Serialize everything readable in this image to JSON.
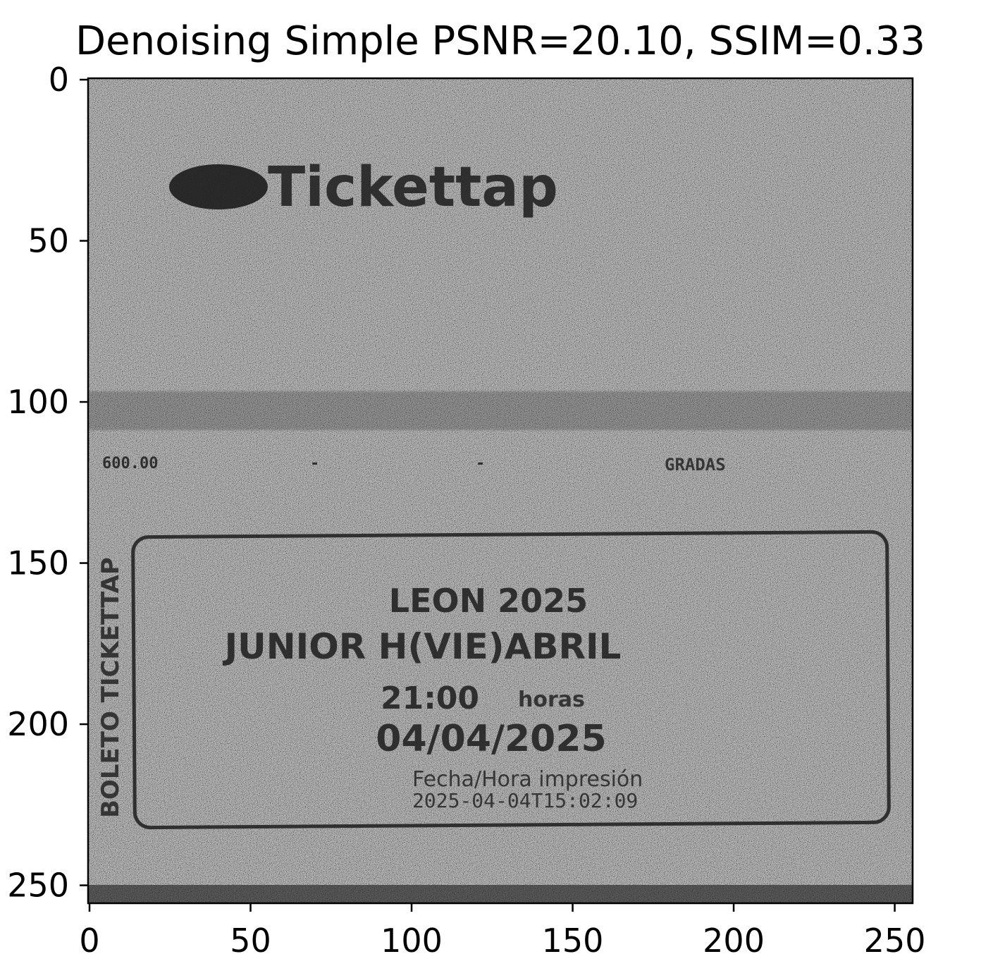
{
  "title": "Denoising Simple PSNR=20.10, SSIM=0.33",
  "axes": {
    "x_ticks": [
      "0",
      "50",
      "100",
      "150",
      "200",
      "250"
    ],
    "y_ticks": [
      "0",
      "50",
      "100",
      "150",
      "200",
      "250"
    ],
    "x_range": [
      0,
      256
    ],
    "y_range": [
      0,
      256
    ]
  },
  "image_content": {
    "logo_text": "Tickettap",
    "price_text": "600.00",
    "dash_1": "-",
    "dash_2": "-",
    "section_text": "GRADAS",
    "side_text": "BOLETO TICKETTAP",
    "event_name": "LEON 2025",
    "event_detail": "JUNIOR H(VIE)ABRIL",
    "time_value": "21:00",
    "time_unit": "horas",
    "date": "04/04/2025",
    "print_label": "Fecha/Hora impresión",
    "print_timestamp": "2025-04-04T15:02:09"
  },
  "colors": {
    "noise_base": "#6e6e6e",
    "ink": "#1c1c1c",
    "frame": "#000000"
  }
}
